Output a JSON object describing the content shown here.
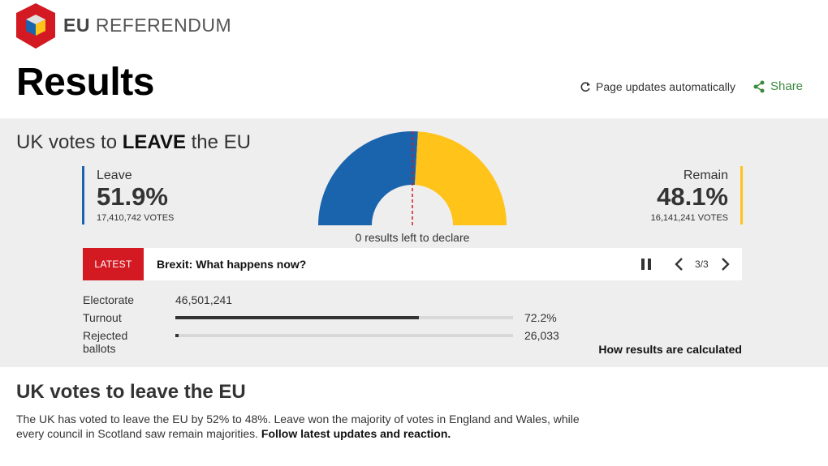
{
  "header": {
    "brand_bold": "EU",
    "brand_rest": "REFERENDUM",
    "title": "Results",
    "auto_update": "Page updates automatically",
    "share": "Share"
  },
  "result": {
    "headline_pre": "UK votes to ",
    "headline_bold": "LEAVE",
    "headline_post": " the EU",
    "leave": {
      "name": "Leave",
      "percent": "51.9%",
      "votes": "17,410,742 VOTES",
      "share": 51.9,
      "color": "#1a64ad"
    },
    "remain": {
      "name": "Remain",
      "percent": "48.1%",
      "votes": "16,141,241 VOTES",
      "share": 48.1,
      "color": "#ffc31a"
    },
    "left_to_declare": "0 results left to declare"
  },
  "latest": {
    "tag": "LATEST",
    "text": "Brexit: What happens now?",
    "pager": "3/3"
  },
  "stats": {
    "electorate_label": "Electorate",
    "electorate_value": "46,501,241",
    "turnout_label": "Turnout",
    "turnout_value": "72.2%",
    "turnout_fraction": 0.722,
    "rejected_label_1": "Rejected",
    "rejected_label_2": "ballots",
    "rejected_value": "26,033",
    "rejected_fraction": 0.01,
    "how_link": "How results are calculated"
  },
  "story": {
    "title": "UK votes to leave the EU",
    "body": "The UK has voted to leave the EU by 52% to 48%. Leave won the majority of votes in England and Wales, while every council in Scotland saw remain majorities. ",
    "link": "Follow latest updates and reaction."
  }
}
